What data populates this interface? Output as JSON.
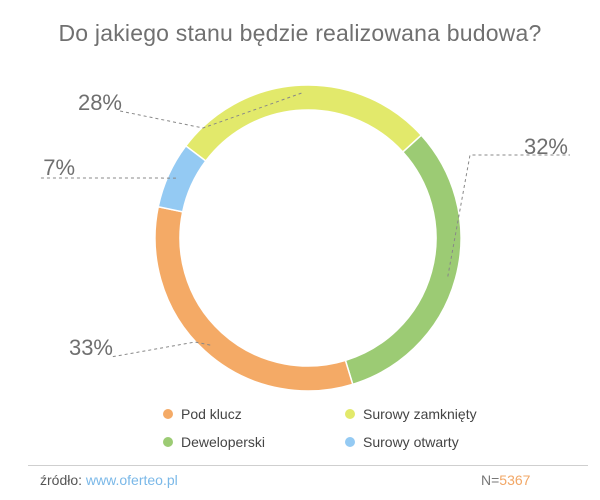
{
  "chart_data": {
    "type": "pie",
    "title": "Do jakiego stanu będzie realizowana budowa?",
    "slices": [
      {
        "name": "Surowy zamknięty",
        "value": 28,
        "label": "28%",
        "color": "#e2e96b"
      },
      {
        "name": "Deweloperski",
        "value": 32,
        "label": "32%",
        "color": "#9ccb74"
      },
      {
        "name": "Pod klucz",
        "value": 33,
        "label": "33%",
        "color": "#f4aa66"
      },
      {
        "name": "Surowy otwarty",
        "value": 7,
        "label": "7%",
        "color": "#94caf3"
      }
    ],
    "legend_position": "bottom"
  },
  "legend": [
    {
      "label": "Pod klucz",
      "color": "#f4aa66"
    },
    {
      "label": "Surowy zamknięty",
      "color": "#e2e96b"
    },
    {
      "label": "Deweloperski",
      "color": "#9ccb74"
    },
    {
      "label": "Surowy otwarty",
      "color": "#94caf3"
    }
  ],
  "footer": {
    "source_prefix": "źródło:",
    "source_link": "www.oferteo.pl",
    "n_prefix": "N=",
    "n_value": "5367"
  }
}
